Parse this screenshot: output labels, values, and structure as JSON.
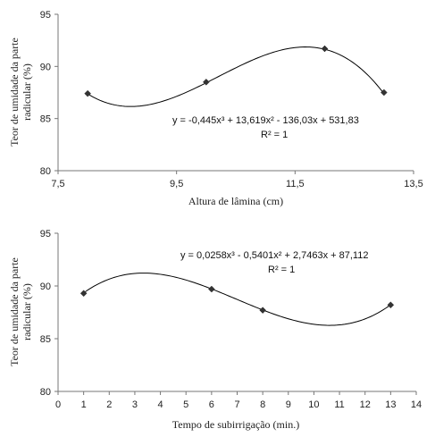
{
  "chart_data": [
    {
      "type": "scatter",
      "title": "",
      "xlabel": "Altura de lâmina (cm)",
      "ylabel": [
        "Teor de umidade da parte",
        "radicular (%)"
      ],
      "xlim": [
        7.5,
        13.5
      ],
      "ylim": [
        80,
        95
      ],
      "xticks": [
        "7,5",
        "9,5",
        "11,5",
        "13,5"
      ],
      "xtick_values": [
        7.5,
        9.5,
        11.5,
        13.5
      ],
      "yticks": [
        "80",
        "85",
        "90",
        "95"
      ],
      "ytick_values": [
        80,
        85,
        90,
        95
      ],
      "grid": false,
      "points": [
        {
          "x": 8,
          "y": 87.4
        },
        {
          "x": 10,
          "y": 88.5
        },
        {
          "x": 12,
          "y": 91.7
        },
        {
          "x": 13,
          "y": 87.5
        }
      ],
      "trendline": {
        "type": "polynomial",
        "coefficients": [
          -0.445,
          13.619,
          -136.03,
          531.83
        ],
        "x_range": [
          8,
          13
        ]
      },
      "equation": "y = -0,445x³ + 13,619x² - 136,03x + 531,83",
      "r2": "R² = 1"
    },
    {
      "type": "scatter",
      "title": "",
      "xlabel": "Tempo de subirrigação (min.)",
      "ylabel": [
        "Teor de umidade da parte",
        "radicular (%)"
      ],
      "xlim": [
        0,
        14
      ],
      "ylim": [
        80,
        95
      ],
      "xticks": [
        "0",
        "1",
        "2",
        "3",
        "4",
        "5",
        "6",
        "7",
        "8",
        "9",
        "10",
        "11",
        "12",
        "13",
        "14"
      ],
      "xtick_values": [
        0,
        1,
        2,
        3,
        4,
        5,
        6,
        7,
        8,
        9,
        10,
        11,
        12,
        13,
        14
      ],
      "yticks": [
        "80",
        "85",
        "90",
        "95"
      ],
      "ytick_values": [
        80,
        85,
        90,
        95
      ],
      "grid": false,
      "points": [
        {
          "x": 1,
          "y": 89.3
        },
        {
          "x": 6,
          "y": 89.7
        },
        {
          "x": 8,
          "y": 87.7
        },
        {
          "x": 13,
          "y": 88.2
        }
      ],
      "trendline": {
        "type": "polynomial",
        "coefficients": [
          0.0258,
          -0.5401,
          2.7463,
          87.112
        ],
        "x_range": [
          1,
          13
        ]
      },
      "equation": "y = 0,0258x³ - 0,5401x² + 2,7463x + 87,112",
      "r2": "R² = 1"
    }
  ]
}
